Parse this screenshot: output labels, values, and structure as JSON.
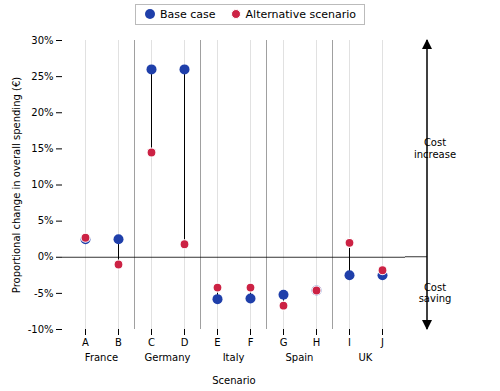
{
  "chart_data": {
    "type": "dumbbell",
    "categories": [
      "A",
      "B",
      "C",
      "D",
      "E",
      "F",
      "G",
      "H",
      "I",
      "J"
    ],
    "groups": [
      {
        "label": "France",
        "categories": [
          "A",
          "B"
        ]
      },
      {
        "label": "Germany",
        "categories": [
          "C",
          "D"
        ]
      },
      {
        "label": "Italy",
        "categories": [
          "E",
          "F"
        ]
      },
      {
        "label": "Spain",
        "categories": [
          "G",
          "H"
        ]
      },
      {
        "label": "UK",
        "categories": [
          "I",
          "J"
        ]
      }
    ],
    "series": [
      {
        "name": "Base case",
        "color": "#1f3faa",
        "values": [
          2.5,
          2.5,
          26.0,
          26.0,
          -5.8,
          -5.7,
          -5.2,
          -4.6,
          -2.5,
          -2.5
        ]
      },
      {
        "name": "Alternative scenario",
        "color": "#cc2244",
        "values": [
          2.7,
          -1.0,
          14.5,
          1.8,
          -4.2,
          -4.2,
          -6.7,
          -4.6,
          2.0,
          -1.8
        ]
      }
    ],
    "xlabel": "Scenario",
    "ylabel": "Proportional change in overall spending (€)",
    "ylim": [
      -10,
      30
    ],
    "yticks": [
      {
        "value": -10,
        "label": "-10%"
      },
      {
        "value": -5,
        "label": "-5%"
      },
      {
        "value": 0,
        "label": "0%"
      },
      {
        "value": 5,
        "label": "5%"
      },
      {
        "value": 10,
        "label": "10%"
      },
      {
        "value": 15,
        "label": "15%"
      },
      {
        "value": 20,
        "label": "20%"
      },
      {
        "value": 25,
        "label": "25%"
      },
      {
        "value": 30,
        "label": "30%"
      }
    ],
    "annotations": [
      "Cost\nincrease",
      "Cost\nsaving"
    ],
    "legend": "top",
    "grid": "x"
  }
}
